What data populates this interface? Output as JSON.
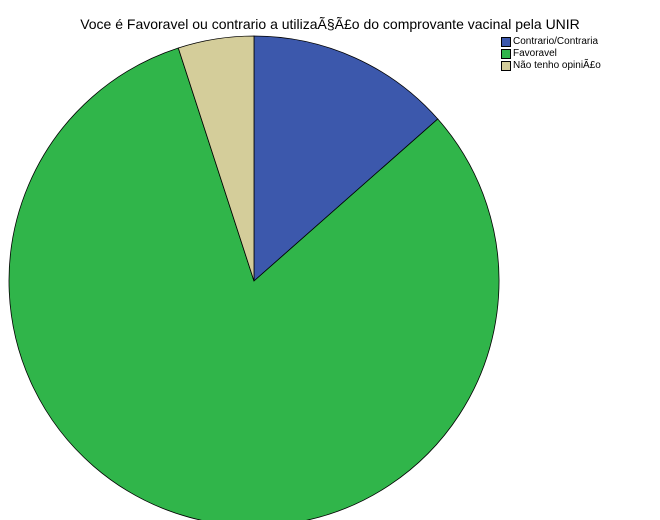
{
  "chart_data": {
    "type": "pie",
    "title": "Voce é Favoravel ou contrario a utilizaÃ§Ã£o do comprovante vacinal pela UNIR",
    "categories": [
      "Contrario/Contraria",
      "Favoravel",
      "Não tenho opiniÃ£o"
    ],
    "values": [
      13.5,
      81.5,
      5.0
    ],
    "unit": "percent",
    "colors": [
      "#3c58ac",
      "#30b54a",
      "#d4cd9a"
    ],
    "legend_position": "top-right",
    "start_angle_deg": 0,
    "direction": "clockwise"
  }
}
